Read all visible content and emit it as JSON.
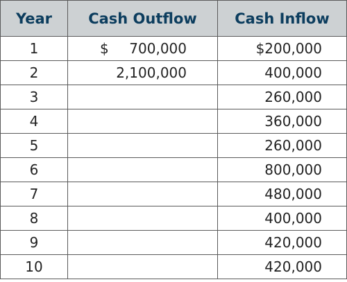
{
  "table": {
    "headers": {
      "year": "Year",
      "outflow": "Cash Outflow",
      "inflow": "Cash Inflow"
    },
    "rows": [
      {
        "year": "1",
        "outflow_currency": "$",
        "outflow": "700,000",
        "inflow": "$200,000"
      },
      {
        "year": "2",
        "outflow_currency": "",
        "outflow": "2,100,000",
        "inflow": "400,000"
      },
      {
        "year": "3",
        "outflow_currency": "",
        "outflow": "",
        "inflow": "260,000"
      },
      {
        "year": "4",
        "outflow_currency": "",
        "outflow": "",
        "inflow": "360,000"
      },
      {
        "year": "5",
        "outflow_currency": "",
        "outflow": "",
        "inflow": "260,000"
      },
      {
        "year": "6",
        "outflow_currency": "",
        "outflow": "",
        "inflow": "800,000"
      },
      {
        "year": "7",
        "outflow_currency": "",
        "outflow": "",
        "inflow": "480,000"
      },
      {
        "year": "8",
        "outflow_currency": "",
        "outflow": "",
        "inflow": "400,000"
      },
      {
        "year": "9",
        "outflow_currency": "",
        "outflow": "",
        "inflow": "420,000"
      },
      {
        "year": "10",
        "outflow_currency": "",
        "outflow": "",
        "inflow": "420,000"
      }
    ]
  },
  "colors": {
    "header_background": "#cdd1d3",
    "header_text": "#0c3d5e",
    "border": "#5a5a5a"
  }
}
